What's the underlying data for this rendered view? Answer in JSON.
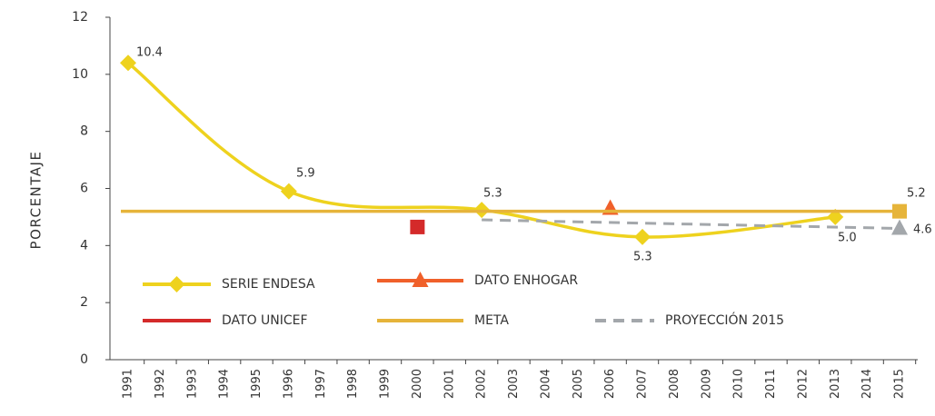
{
  "chart_data": {
    "type": "line",
    "y_label": "PORCENTAJE",
    "categories": [
      "1991",
      "1992",
      "1993",
      "1994",
      "1995",
      "1996",
      "1997",
      "1998",
      "1999",
      "2000",
      "2001",
      "2002",
      "2003",
      "2004",
      "2005",
      "2006",
      "2007",
      "2008",
      "2009",
      "2010",
      "2011",
      "2012",
      "2013",
      "2014",
      "2015"
    ],
    "ylim": [
      0,
      12
    ],
    "yticks": [
      0,
      2,
      4,
      6,
      8,
      10,
      12
    ],
    "series": [
      {
        "name": "SERIE ENDESA",
        "color": "#eed21e",
        "marker": "diamond",
        "style": "line",
        "x": [
          1991,
          1996,
          2002,
          2007,
          2013
        ],
        "values": [
          10.4,
          5.9,
          5.25,
          4.3,
          5.0
        ]
      },
      {
        "name": "DATO ENHOGAR",
        "color": "#f0602a",
        "marker": "triangle",
        "style": "point",
        "x": [
          2006
        ],
        "values": [
          5.3
        ]
      },
      {
        "name": "DATO UNICEF",
        "color": "#d42a2a",
        "marker": "square",
        "style": "point",
        "x": [
          2000
        ],
        "values": [
          4.65
        ]
      },
      {
        "name": "META",
        "color": "#e6b43a",
        "marker": "square-end",
        "style": "line",
        "x": [
          1991,
          2015
        ],
        "values": [
          5.2,
          5.2
        ]
      },
      {
        "name": "PROYECCIÓN 2015",
        "color": "#a3a7ab",
        "marker": "triangle-end",
        "style": "dashed",
        "x": [
          2002,
          2015
        ],
        "values": [
          4.9,
          4.6
        ]
      }
    ],
    "annotations": [
      "10.4",
      "5.9",
      "5.3",
      "5.3",
      "5.0",
      "5.2",
      "4.6"
    ]
  }
}
